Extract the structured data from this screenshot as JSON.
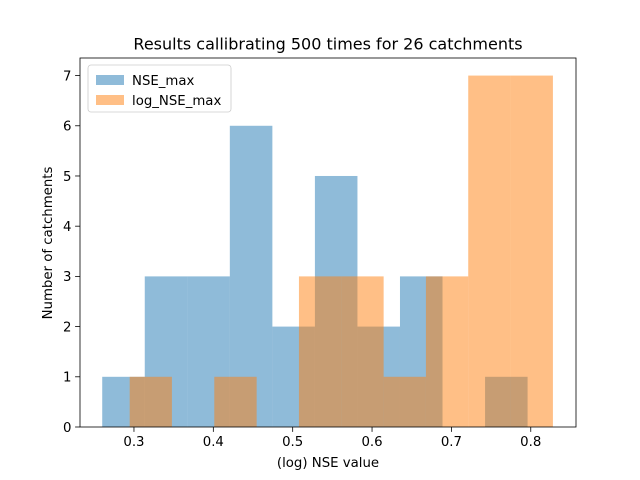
{
  "chart_data": {
    "type": "histogram",
    "title": "Results callibrating 500 times for 26 catchments",
    "xlabel": "(log) NSE value",
    "ylabel": "Number of catchments",
    "xlim": [
      0.232,
      0.857
    ],
    "ylim": [
      0,
      7.35
    ],
    "xticks": [
      0.3,
      0.4,
      0.5,
      0.6,
      0.7,
      0.8
    ],
    "xtick_labels": [
      "0.3",
      "0.4",
      "0.5",
      "0.6",
      "0.7",
      "0.8"
    ],
    "yticks": [
      0,
      1,
      2,
      3,
      4,
      5,
      6,
      7
    ],
    "ytick_labels": [
      "0",
      "1",
      "2",
      "3",
      "4",
      "5",
      "6",
      "7"
    ],
    "legend_position": "top-left",
    "series": [
      {
        "name": "NSE_max",
        "color": "#1f77b4",
        "opacity": 0.5,
        "bin_edges": [
          0.26,
          0.3136,
          0.3672,
          0.4208,
          0.4744,
          0.528,
          0.5816,
          0.6352,
          0.6888,
          0.7424,
          0.796
        ],
        "counts": [
          1,
          3,
          3,
          6,
          2,
          5,
          2,
          3,
          0,
          1
        ]
      },
      {
        "name": "log_NSE_max",
        "color": "#ff7f0e",
        "opacity": 0.5,
        "bin_edges": [
          0.2946,
          0.3478,
          0.4012,
          0.4546,
          0.5079,
          0.5612,
          0.6146,
          0.6679,
          0.7212,
          0.7746,
          0.8279
        ],
        "counts": [
          1,
          0,
          1,
          0,
          3,
          3,
          1,
          3,
          7,
          7
        ]
      }
    ]
  }
}
